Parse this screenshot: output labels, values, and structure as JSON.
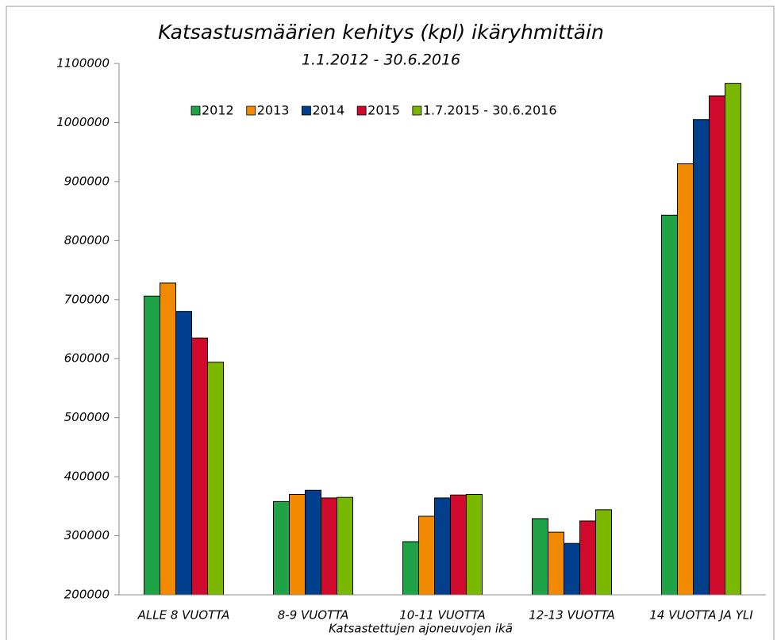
{
  "chart_data": {
    "type": "bar",
    "title": "Katsastusmäärien kehitys (kpl) ikäryhmittäin",
    "subtitle": "1.1.2012 - 30.6.2016",
    "x_label": "Katsastettujen ajoneuvojen ikä",
    "categories": [
      "ALLE 8 VUOTTA",
      "8-9 VUOTTA",
      "10-11 VUOTTA",
      "12-13 VUOTTA",
      "14 VUOTTA JA YLI"
    ],
    "series": [
      {
        "name": "2012",
        "color": "#1fa346",
        "values": [
          706000,
          358000,
          290000,
          329000,
          843000
        ]
      },
      {
        "name": "2013",
        "color": "#f28a00",
        "values": [
          728000,
          370000,
          333000,
          306000,
          930000
        ]
      },
      {
        "name": "2014",
        "color": "#003f8c",
        "values": [
          680000,
          377000,
          364000,
          287000,
          1005000
        ]
      },
      {
        "name": "2015",
        "color": "#cf0a2c",
        "values": [
          635000,
          364000,
          369000,
          325000,
          1045000
        ]
      },
      {
        "name": "1.7.2015 - 30.6.2016",
        "color": "#7ab800",
        "values": [
          594000,
          365000,
          370000,
          344000,
          1066000
        ]
      }
    ],
    "ylim": [
      200000,
      1100000
    ],
    "yticks": [
      200000,
      300000,
      400000,
      500000,
      600000,
      700000,
      800000,
      900000,
      1000000,
      1100000
    ],
    "grid": false,
    "legend": "top"
  }
}
